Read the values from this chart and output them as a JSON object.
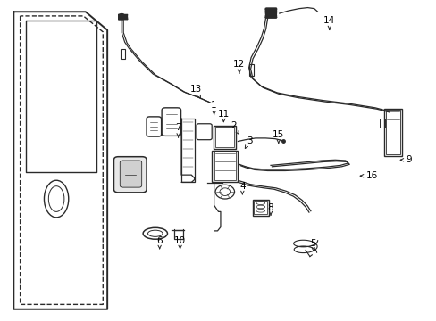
{
  "bg_color": "#ffffff",
  "line_color": "#2a2a2a",
  "figsize": [
    4.89,
    3.6
  ],
  "dpi": 100,
  "label_positions": {
    "14": [
      0.755,
      0.062,
      0.755,
      0.092
    ],
    "12": [
      0.548,
      0.198,
      0.548,
      0.228
    ],
    "13": [
      0.448,
      0.278,
      0.46,
      0.308
    ],
    "7": [
      0.408,
      0.398,
      0.408,
      0.428
    ],
    "1": [
      0.49,
      0.328,
      0.49,
      0.358
    ],
    "11": [
      0.512,
      0.355,
      0.512,
      0.382
    ],
    "2": [
      0.535,
      0.39,
      0.548,
      0.42
    ],
    "3": [
      0.572,
      0.438,
      0.56,
      0.465
    ],
    "15": [
      0.638,
      0.418,
      0.638,
      0.448
    ],
    "9": [
      0.938,
      0.498,
      0.91,
      0.498
    ],
    "16": [
      0.852,
      0.548,
      0.818,
      0.548
    ],
    "4": [
      0.555,
      0.582,
      0.555,
      0.608
    ],
    "8": [
      0.62,
      0.648,
      0.62,
      0.672
    ],
    "5": [
      0.718,
      0.758,
      0.718,
      0.785
    ],
    "6": [
      0.365,
      0.752,
      0.365,
      0.778
    ],
    "10": [
      0.412,
      0.752,
      0.412,
      0.778
    ]
  }
}
